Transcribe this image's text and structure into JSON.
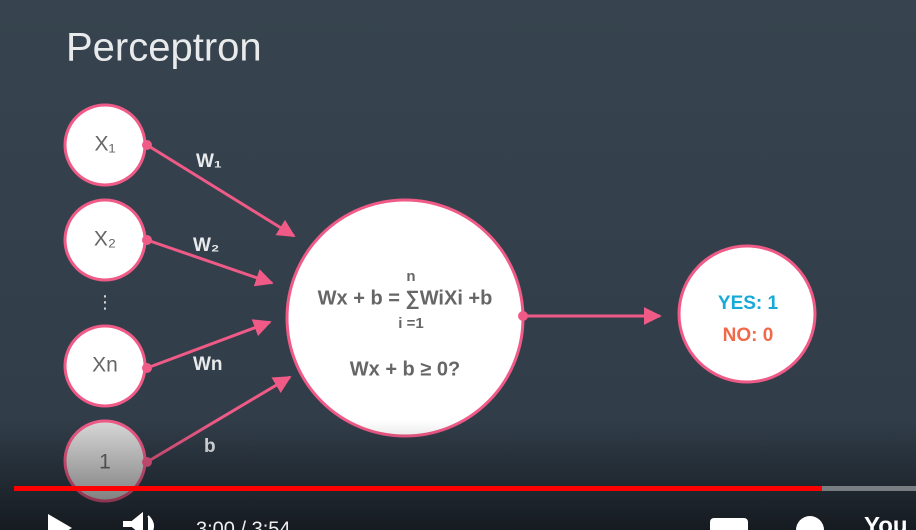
{
  "slide": {
    "title": "Perceptron",
    "inputs": [
      "X₁",
      "X₂",
      "⋮",
      "Xn",
      "1"
    ],
    "weights": [
      "W₁",
      "W₂",
      "Wn",
      "b"
    ],
    "neuron": {
      "sum_upper": "n",
      "formula": "Wx + b = ∑WiXi +b",
      "sum_lower": "i =1",
      "condition": "Wx + b ≥ 0?"
    },
    "output": {
      "yes": "YES: 1",
      "no": "NO: 0"
    }
  },
  "player": {
    "time": "3:00 / 3:54",
    "brand": "You"
  }
}
